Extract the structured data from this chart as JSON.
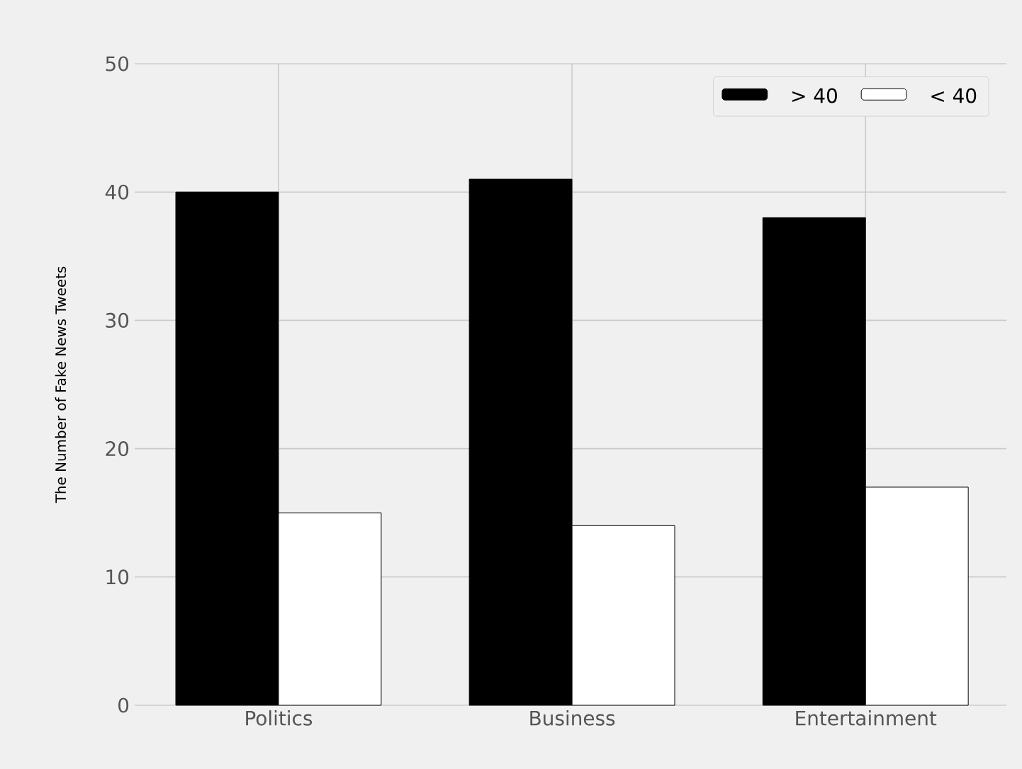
{
  "chart_data": {
    "type": "bar",
    "ylabel": "The Number of Fake News Tweets",
    "categories": [
      "Politics",
      "Business",
      "Entertainment"
    ],
    "series": [
      {
        "name": "> 40",
        "color": "#000000",
        "values": [
          40,
          41,
          38
        ]
      },
      {
        "name": "< 40",
        "color": "#ffffff",
        "values": [
          15,
          14,
          17
        ]
      }
    ],
    "ylim": [
      0,
      50
    ],
    "yticks": [
      0,
      10,
      20,
      30,
      40,
      50
    ],
    "grid": true,
    "legend": "top right"
  }
}
